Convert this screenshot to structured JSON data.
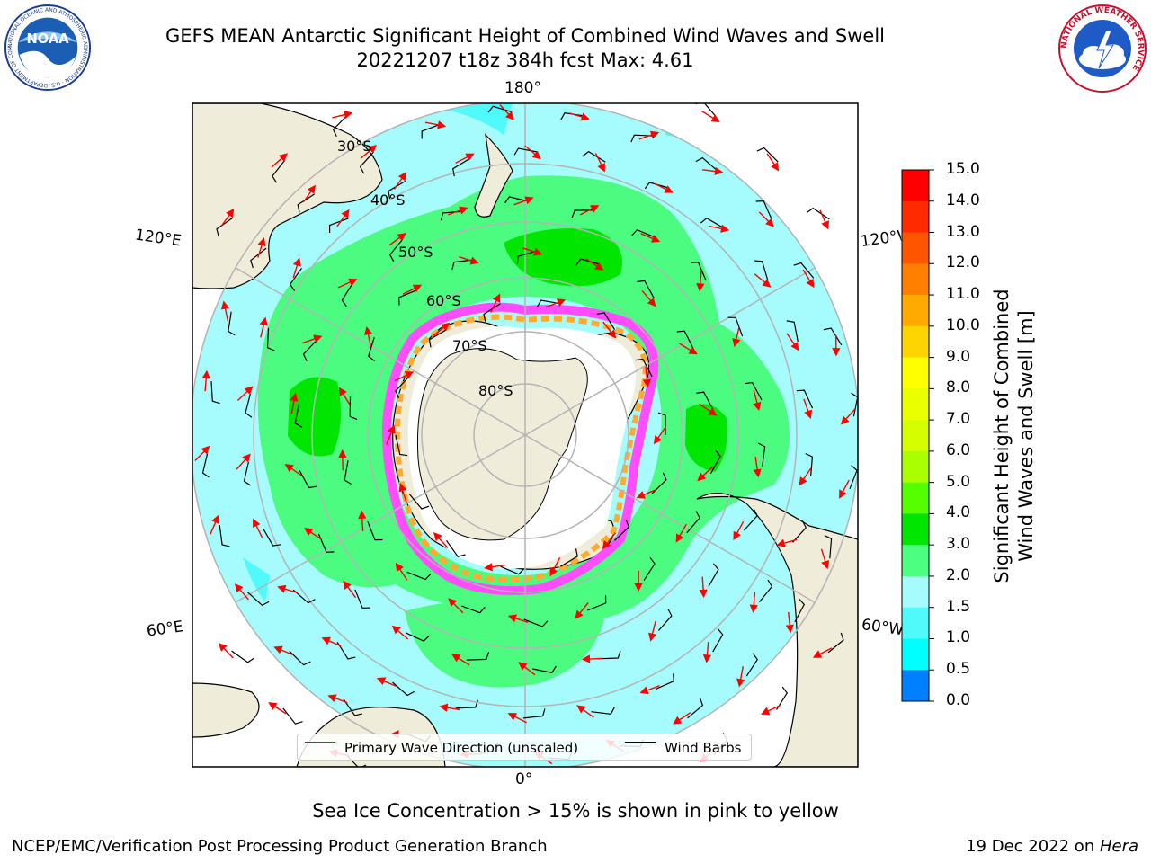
{
  "title": {
    "line1": "GEFS MEAN Antarctic Significant Height of Combined Wind Waves and Swell",
    "line2": "20221207 t18z 384h fcst   Max: 4.61"
  },
  "logos": {
    "left": "noaa-logo",
    "right": "nws-logo",
    "left_ring_text": "NATIONAL OCEANIC AND ATMOSPHERIC ADMINISTRATION · U.S. DEPARTMENT OF COMMERCE",
    "left_center_text": "NOAA",
    "right_ring_text": "NATIONAL WEATHER SERVICE"
  },
  "map": {
    "projection": "south-polar-stereographic",
    "longitude_labels": {
      "top": "180°",
      "bottom": "0°",
      "upper_left": "120°E",
      "lower_left": "60°E",
      "upper_right": "120°W",
      "lower_right": "60°W"
    },
    "latitude_labels": [
      "30°S",
      "40°S",
      "50°S",
      "60°S",
      "70°S",
      "80°S"
    ],
    "colors": {
      "land": "#efedda",
      "ocean_low": "#a6fcfc",
      "ocean_mid": "#4cfc80",
      "ocean_high": "#00e600",
      "ocean_cyan": "#50fafa",
      "sea_ice_pink": "#ff4dff",
      "sea_ice_orange": "#ffaa33",
      "gridline": "#b4b4b4",
      "wave_arrow": "#ff0000",
      "wind_barb": "#000000"
    }
  },
  "legend": {
    "wave": "Primary Wave Direction (unscaled)",
    "wind": "Wind Barbs"
  },
  "colorbar": {
    "title_line1": "Significant Height of Combined",
    "title_line2": "Wind Waves and Swell [m]",
    "ticks": [
      "15.0",
      "14.0",
      "13.0",
      "12.0",
      "11.0",
      "10.0",
      "9.0",
      "8.0",
      "7.0",
      "6.0",
      "5.0",
      "4.0",
      "3.0",
      "2.0",
      "1.5",
      "1.0",
      "0.5",
      "0.0"
    ],
    "colors": [
      "#ff0000",
      "#ff2a00",
      "#ff5500",
      "#ff8000",
      "#ffaa00",
      "#ffd500",
      "#ffff00",
      "#eaff00",
      "#d5ff00",
      "#aaff00",
      "#55ff00",
      "#00e600",
      "#4dff80",
      "#a6fcfc",
      "#50fafa",
      "#00ffff",
      "#0080ff",
      "#0000ff"
    ]
  },
  "notes": {
    "sea_ice": "Sea Ice Concentration > 15% is shown in pink to yellow",
    "footer_left": "NCEP/EMC/Verification Post Processing Product Generation Branch",
    "footer_date": "19 Dec 2022 on ",
    "footer_host": "Hera"
  }
}
